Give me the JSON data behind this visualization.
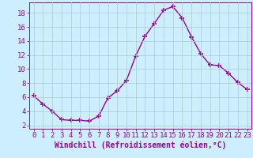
{
  "x": [
    0,
    1,
    2,
    3,
    4,
    5,
    6,
    7,
    8,
    9,
    10,
    11,
    12,
    13,
    14,
    15,
    16,
    17,
    18,
    19,
    20,
    21,
    22,
    23
  ],
  "y": [
    6.2,
    5.0,
    4.0,
    2.8,
    2.7,
    2.7,
    2.6,
    3.3,
    5.9,
    6.9,
    8.4,
    11.9,
    14.7,
    16.5,
    18.4,
    18.9,
    17.3,
    14.6,
    12.2,
    10.6,
    10.5,
    9.4,
    8.1,
    7.1
  ],
  "line_color": "#990099",
  "marker": "+",
  "marker_size": 4,
  "marker_linewidth": 1.2,
  "line_width": 1.0,
  "xlabel": "Windchill (Refroidissement éolien,°C)",
  "xlim": [
    -0.5,
    23.5
  ],
  "ylim": [
    1.5,
    19.5
  ],
  "yticks": [
    2,
    4,
    6,
    8,
    10,
    12,
    14,
    16,
    18
  ],
  "xticks": [
    0,
    1,
    2,
    3,
    4,
    5,
    6,
    7,
    8,
    9,
    10,
    11,
    12,
    13,
    14,
    15,
    16,
    17,
    18,
    19,
    20,
    21,
    22,
    23
  ],
  "bg_color": "#cceeff",
  "grid_color": "#aacccc",
  "tick_color": "#990099",
  "label_color": "#990099",
  "xlabel_fontsize": 7,
  "tick_fontsize": 6.5
}
